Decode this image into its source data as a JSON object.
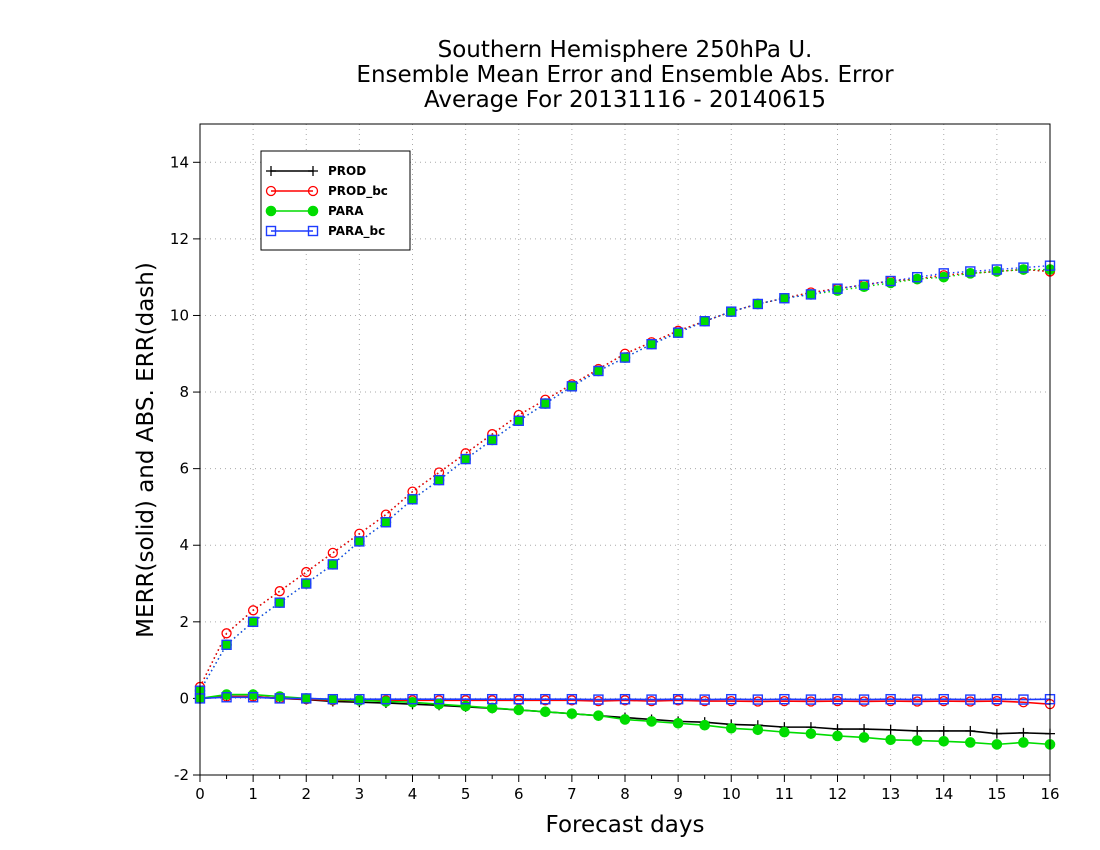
{
  "chart_data": {
    "type": "line",
    "title": [
      "Southern Hemisphere 250hPa U.",
      "Ensemble Mean Error and Ensemble Abs. Error",
      "Average For 20131116 - 20140615"
    ],
    "xlabel": "Forecast days",
    "ylabel": "MERR(solid) and ABS. ERR(dash)",
    "xlim": [
      0,
      16
    ],
    "ylim": [
      -2,
      15
    ],
    "xticks": [
      0,
      1,
      2,
      3,
      4,
      5,
      6,
      7,
      8,
      9,
      10,
      11,
      12,
      13,
      14,
      15,
      16
    ],
    "yticks": [
      -2,
      0,
      2,
      4,
      6,
      8,
      10,
      12,
      14
    ],
    "grid": true,
    "legend_position": "top-left",
    "x": [
      0,
      0.5,
      1,
      1.5,
      2,
      2.5,
      3,
      3.5,
      4,
      4.5,
      5,
      5.5,
      6,
      6.5,
      7,
      7.5,
      8,
      8.5,
      9,
      9.5,
      10,
      10.5,
      11,
      11.5,
      12,
      12.5,
      13,
      13.5,
      14,
      14.5,
      15,
      15.5,
      16
    ],
    "series": [
      {
        "name": "PROD",
        "color": "#000000",
        "marker": "plus",
        "merr": [
          0.0,
          0.05,
          0.05,
          0.0,
          -0.03,
          -0.08,
          -0.1,
          -0.12,
          -0.15,
          -0.18,
          -0.22,
          -0.26,
          -0.3,
          -0.35,
          -0.4,
          -0.45,
          -0.5,
          -0.55,
          -0.6,
          -0.62,
          -0.68,
          -0.7,
          -0.75,
          -0.75,
          -0.8,
          -0.8,
          -0.82,
          -0.85,
          -0.85,
          -0.85,
          -0.92,
          -0.9,
          -0.92
        ],
        "abs_err": [
          0.3,
          1.7,
          2.3,
          2.8,
          3.3,
          3.8,
          4.3,
          4.8,
          5.4,
          5.9,
          6.4,
          6.9,
          7.4,
          7.8,
          8.2,
          8.6,
          9.0,
          9.3,
          9.6,
          9.85,
          10.1,
          10.3,
          10.45,
          10.6,
          10.7,
          10.8,
          10.9,
          10.95,
          11.05,
          11.1,
          11.15,
          11.2,
          11.15
        ]
      },
      {
        "name": "PROD_bc",
        "color": "#ff0000",
        "marker": "open-circle",
        "merr": [
          0.0,
          0.05,
          0.05,
          0.0,
          -0.02,
          -0.05,
          -0.05,
          -0.05,
          -0.05,
          -0.05,
          -0.05,
          -0.05,
          -0.05,
          -0.05,
          -0.05,
          -0.07,
          -0.05,
          -0.07,
          -0.05,
          -0.07,
          -0.07,
          -0.08,
          -0.07,
          -0.08,
          -0.07,
          -0.08,
          -0.07,
          -0.08,
          -0.07,
          -0.08,
          -0.07,
          -0.1,
          -0.15
        ],
        "abs_err": [
          0.3,
          1.7,
          2.3,
          2.8,
          3.3,
          3.8,
          4.3,
          4.8,
          5.4,
          5.9,
          6.4,
          6.9,
          7.4,
          7.8,
          8.2,
          8.6,
          9.0,
          9.3,
          9.6,
          9.85,
          10.1,
          10.3,
          10.45,
          10.6,
          10.7,
          10.8,
          10.9,
          10.95,
          11.05,
          11.1,
          11.15,
          11.2,
          11.15
        ]
      },
      {
        "name": "PARA",
        "color": "#00dc00",
        "marker": "filled-circle",
        "merr": [
          0.0,
          0.1,
          0.1,
          0.05,
          0.0,
          -0.03,
          -0.05,
          -0.08,
          -0.1,
          -0.15,
          -0.2,
          -0.25,
          -0.3,
          -0.35,
          -0.4,
          -0.45,
          -0.55,
          -0.6,
          -0.65,
          -0.7,
          -0.78,
          -0.82,
          -0.88,
          -0.92,
          -0.98,
          -1.02,
          -1.08,
          -1.1,
          -1.12,
          -1.15,
          -1.2,
          -1.15,
          -1.2
        ],
        "abs_err": [
          0.2,
          1.4,
          2.0,
          2.5,
          3.0,
          3.5,
          4.1,
          4.6,
          5.2,
          5.7,
          6.25,
          6.75,
          7.25,
          7.7,
          8.15,
          8.55,
          8.9,
          9.25,
          9.55,
          9.85,
          10.1,
          10.3,
          10.45,
          10.55,
          10.65,
          10.75,
          10.85,
          10.95,
          11.0,
          11.1,
          11.15,
          11.2,
          11.2
        ]
      },
      {
        "name": "PARA_bc",
        "color": "#1e3cff",
        "marker": "open-square",
        "merr": [
          0.0,
          0.03,
          0.03,
          0.0,
          0.0,
          -0.02,
          -0.02,
          -0.02,
          -0.02,
          -0.02,
          -0.02,
          -0.02,
          -0.02,
          -0.02,
          -0.02,
          -0.03,
          -0.02,
          -0.03,
          -0.02,
          -0.03,
          -0.02,
          -0.03,
          -0.02,
          -0.03,
          -0.02,
          -0.03,
          -0.02,
          -0.03,
          -0.02,
          -0.03,
          -0.02,
          -0.03,
          -0.02
        ],
        "abs_err": [
          0.2,
          1.4,
          2.0,
          2.5,
          3.0,
          3.5,
          4.1,
          4.6,
          5.2,
          5.7,
          6.25,
          6.75,
          7.25,
          7.7,
          8.15,
          8.55,
          8.9,
          9.25,
          9.55,
          9.85,
          10.1,
          10.3,
          10.45,
          10.55,
          10.7,
          10.8,
          10.9,
          11.0,
          11.1,
          11.15,
          11.2,
          11.25,
          11.3
        ]
      }
    ]
  }
}
